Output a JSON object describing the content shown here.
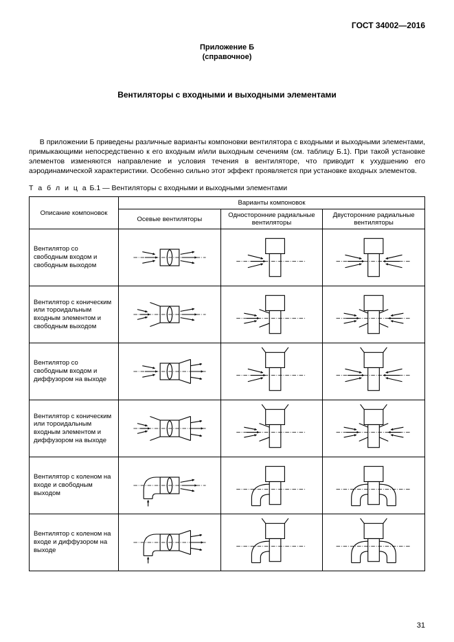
{
  "doc_code": "ГОСТ 34002—2016",
  "appendix_line1": "Приложение Б",
  "appendix_line2": "(справочное)",
  "heading": "Вентиляторы с входными и выходными элементами",
  "intro": "В приложении Б приведены различные варианты компоновки вентилятора с входными и выходными элементами, примыкающими непосредственно к его входным и/или выходным сечениям (см. таблицу Б.1). При такой установке элементов изменяются направление и условия течения в вентиляторе, что приводит к ухудшению его аэродинамической характеристики. Особенно сильно этот эффект проявляется при установке входных элементов.",
  "table_caption_prefix": "Т а б л и ц а",
  "table_caption_rest": "  Б.1 — Вентиляторы с входными и выходными элементами",
  "header_col1": "Описание компоновок",
  "header_group": "Варианты компоновок",
  "header_sub1": "Осевые вентиляторы",
  "header_sub2": "Односторонние радиальные вентиляторы",
  "header_sub3": "Двусторонние радиальные вентиляторы",
  "rows": [
    {
      "desc": "Вентилятор со свободным входом и свободным выходом"
    },
    {
      "desc": "Вентилятор с коническим или тороидальным входным элементом и свободным выходом"
    },
    {
      "desc": "Вентилятор со свободным входом и диффузором на выходе"
    },
    {
      "desc": "Вентилятор с коническим или тороидальным входным элементом и диффузором на выходе"
    },
    {
      "desc": "Вентилятор с коленом на входе и свободным выходом"
    },
    {
      "desc": "Вентилятор с коленом на входе и диффузором на выходе"
    }
  ],
  "page_num": "31",
  "stroke": "#000000",
  "stroke_w": 1.2
}
